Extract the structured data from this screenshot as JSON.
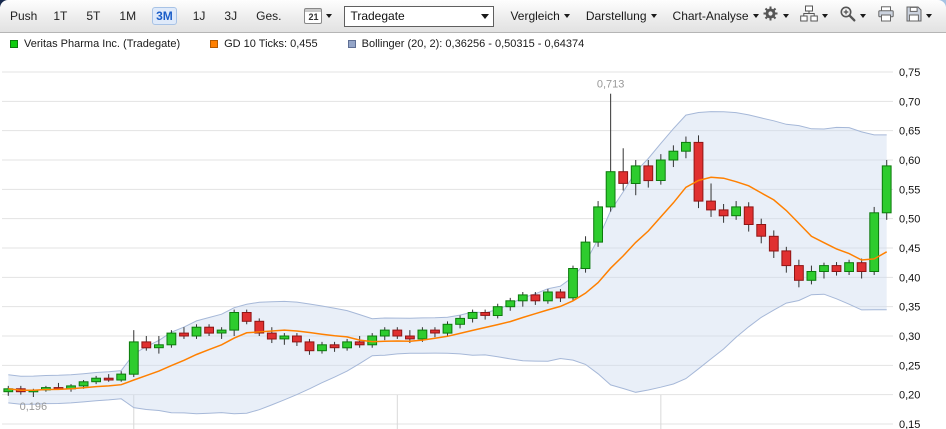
{
  "toolbar": {
    "push_label": "Push",
    "periods": [
      {
        "label": "1T",
        "active": false
      },
      {
        "label": "5T",
        "active": false
      },
      {
        "label": "1M",
        "active": false
      },
      {
        "label": "3M",
        "active": true
      },
      {
        "label": "1J",
        "active": false
      },
      {
        "label": "3J",
        "active": false
      },
      {
        "label": "Ges.",
        "active": false
      }
    ],
    "calendar_day": "21",
    "exchange_select": {
      "value": "Tradegate"
    },
    "menus": [
      {
        "label": "Vergleich"
      },
      {
        "label": "Darstellung"
      },
      {
        "label": "Chart-Analyse"
      }
    ],
    "icon_buttons": [
      {
        "name": "settings",
        "icon": "gear-icon",
        "has_dropdown": true
      },
      {
        "name": "chart-type",
        "icon": "sitemap-icon",
        "has_dropdown": true
      },
      {
        "name": "zoom",
        "icon": "zoom-in-icon",
        "has_dropdown": true
      },
      {
        "name": "print",
        "icon": "printer-icon",
        "has_dropdown": false
      },
      {
        "name": "save",
        "icon": "save-icon",
        "has_dropdown": true
      }
    ]
  },
  "legend": {
    "items": [
      {
        "label": "Veritas Pharma Inc. (Tradegate)",
        "color": "#0ecc0e",
        "border": "#0a7a0a"
      },
      {
        "label": "GD 10 Ticks: 0,455",
        "color": "#ff8000",
        "border": "#b35900"
      },
      {
        "label": "Bollinger (20, 2): 0,36256 - 0,50315 - 0,64374",
        "color": "#94a5c8",
        "border": "#5f6f94"
      }
    ]
  },
  "chart_data": {
    "type": "candlestick",
    "series_name": "Veritas Pharma Inc. (Tradegate)",
    "period_shown": "3M",
    "ylim": [
      0.15,
      0.75
    ],
    "grid": true,
    "y_ticks": [
      {
        "value": 0.75,
        "label": "0,75"
      },
      {
        "value": 0.7,
        "label": "0,70"
      },
      {
        "value": 0.65,
        "label": "0,65"
      },
      {
        "value": 0.6,
        "label": "0,60"
      },
      {
        "value": 0.55,
        "label": "0,55"
      },
      {
        "value": 0.5,
        "label": "0,50"
      },
      {
        "value": 0.45,
        "label": "0,45"
      },
      {
        "value": 0.4,
        "label": "0,40"
      },
      {
        "value": 0.35,
        "label": "0,35"
      },
      {
        "value": 0.3,
        "label": "0,30"
      },
      {
        "value": 0.25,
        "label": "0,25"
      },
      {
        "value": 0.2,
        "label": "0,20"
      },
      {
        "value": 0.15,
        "label": "0,15"
      }
    ],
    "annotations": [
      {
        "text": "0,713",
        "index": 48,
        "price": 0.713,
        "position": "above"
      },
      {
        "text": "0,196",
        "index": 2,
        "price": 0.196,
        "position": "below"
      }
    ],
    "overlays": [
      {
        "name": "GD 10 Ticks",
        "type": "sma",
        "period": 10,
        "color": "#ff8000",
        "current_value": "0,455"
      },
      {
        "name": "Bollinger",
        "type": "bollinger",
        "period": 20,
        "stddev": 2,
        "line_color": "#a6b8d8",
        "fill_color": "rgba(203,216,238,0.42)",
        "current_values": "0,36256 - 0,50315 - 0,64374"
      }
    ],
    "colors": {
      "up": "#2ecc2e",
      "up_border": "#0c7a0c",
      "down": "#e03030",
      "down_border": "#8f1515",
      "wick": "#333333",
      "grid": "#e3e3e3",
      "axis_text": "#111111",
      "annotation": "#999999"
    },
    "month_separator_indices": [
      10,
      31,
      52
    ],
    "candles": [
      [
        0.205,
        0.215,
        0.198,
        0.21
      ],
      [
        0.21,
        0.215,
        0.2,
        0.205
      ],
      [
        0.205,
        0.21,
        0.196,
        0.208
      ],
      [
        0.208,
        0.215,
        0.205,
        0.212
      ],
      [
        0.212,
        0.22,
        0.208,
        0.21
      ],
      [
        0.21,
        0.218,
        0.205,
        0.215
      ],
      [
        0.215,
        0.225,
        0.21,
        0.222
      ],
      [
        0.222,
        0.232,
        0.218,
        0.228
      ],
      [
        0.228,
        0.235,
        0.222,
        0.225
      ],
      [
        0.225,
        0.24,
        0.222,
        0.235
      ],
      [
        0.235,
        0.31,
        0.23,
        0.29
      ],
      [
        0.29,
        0.3,
        0.275,
        0.28
      ],
      [
        0.28,
        0.3,
        0.27,
        0.285
      ],
      [
        0.285,
        0.31,
        0.28,
        0.305
      ],
      [
        0.305,
        0.315,
        0.295,
        0.3
      ],
      [
        0.3,
        0.32,
        0.295,
        0.315
      ],
      [
        0.315,
        0.32,
        0.3,
        0.305
      ],
      [
        0.305,
        0.315,
        0.295,
        0.31
      ],
      [
        0.31,
        0.345,
        0.3,
        0.34
      ],
      [
        0.34,
        0.345,
        0.32,
        0.325
      ],
      [
        0.325,
        0.33,
        0.3,
        0.305
      ],
      [
        0.305,
        0.315,
        0.288,
        0.295
      ],
      [
        0.295,
        0.305,
        0.285,
        0.3
      ],
      [
        0.3,
        0.305,
        0.283,
        0.29
      ],
      [
        0.29,
        0.295,
        0.268,
        0.275
      ],
      [
        0.275,
        0.29,
        0.27,
        0.285
      ],
      [
        0.285,
        0.29,
        0.273,
        0.28
      ],
      [
        0.28,
        0.295,
        0.275,
        0.29
      ],
      [
        0.29,
        0.3,
        0.28,
        0.285
      ],
      [
        0.285,
        0.305,
        0.28,
        0.3
      ],
      [
        0.3,
        0.315,
        0.293,
        0.31
      ],
      [
        0.31,
        0.315,
        0.295,
        0.3
      ],
      [
        0.3,
        0.31,
        0.288,
        0.295
      ],
      [
        0.295,
        0.315,
        0.29,
        0.31
      ],
      [
        0.31,
        0.315,
        0.298,
        0.305
      ],
      [
        0.305,
        0.325,
        0.3,
        0.32
      ],
      [
        0.32,
        0.335,
        0.313,
        0.33
      ],
      [
        0.33,
        0.345,
        0.323,
        0.34
      ],
      [
        0.34,
        0.345,
        0.328,
        0.335
      ],
      [
        0.335,
        0.355,
        0.33,
        0.35
      ],
      [
        0.35,
        0.365,
        0.343,
        0.36
      ],
      [
        0.36,
        0.375,
        0.35,
        0.37
      ],
      [
        0.37,
        0.375,
        0.353,
        0.36
      ],
      [
        0.36,
        0.38,
        0.355,
        0.375
      ],
      [
        0.375,
        0.38,
        0.358,
        0.365
      ],
      [
        0.365,
        0.42,
        0.36,
        0.415
      ],
      [
        0.415,
        0.47,
        0.408,
        0.46
      ],
      [
        0.46,
        0.53,
        0.452,
        0.52
      ],
      [
        0.52,
        0.713,
        0.512,
        0.58
      ],
      [
        0.58,
        0.62,
        0.548,
        0.56
      ],
      [
        0.56,
        0.6,
        0.54,
        0.59
      ],
      [
        0.59,
        0.6,
        0.553,
        0.565
      ],
      [
        0.565,
        0.61,
        0.558,
        0.6
      ],
      [
        0.6,
        0.625,
        0.588,
        0.615
      ],
      [
        0.615,
        0.64,
        0.603,
        0.63
      ],
      [
        0.63,
        0.642,
        0.518,
        0.53
      ],
      [
        0.53,
        0.56,
        0.503,
        0.515
      ],
      [
        0.515,
        0.525,
        0.493,
        0.505
      ],
      [
        0.505,
        0.53,
        0.498,
        0.52
      ],
      [
        0.52,
        0.528,
        0.478,
        0.49
      ],
      [
        0.49,
        0.5,
        0.458,
        0.47
      ],
      [
        0.47,
        0.48,
        0.433,
        0.445
      ],
      [
        0.445,
        0.452,
        0.408,
        0.42
      ],
      [
        0.42,
        0.43,
        0.383,
        0.395
      ],
      [
        0.395,
        0.42,
        0.388,
        0.41
      ],
      [
        0.41,
        0.425,
        0.398,
        0.42
      ],
      [
        0.42,
        0.426,
        0.403,
        0.41
      ],
      [
        0.41,
        0.43,
        0.404,
        0.425
      ],
      [
        0.425,
        0.432,
        0.398,
        0.41
      ],
      [
        0.41,
        0.52,
        0.404,
        0.51
      ],
      [
        0.51,
        0.6,
        0.498,
        0.59
      ]
    ]
  }
}
